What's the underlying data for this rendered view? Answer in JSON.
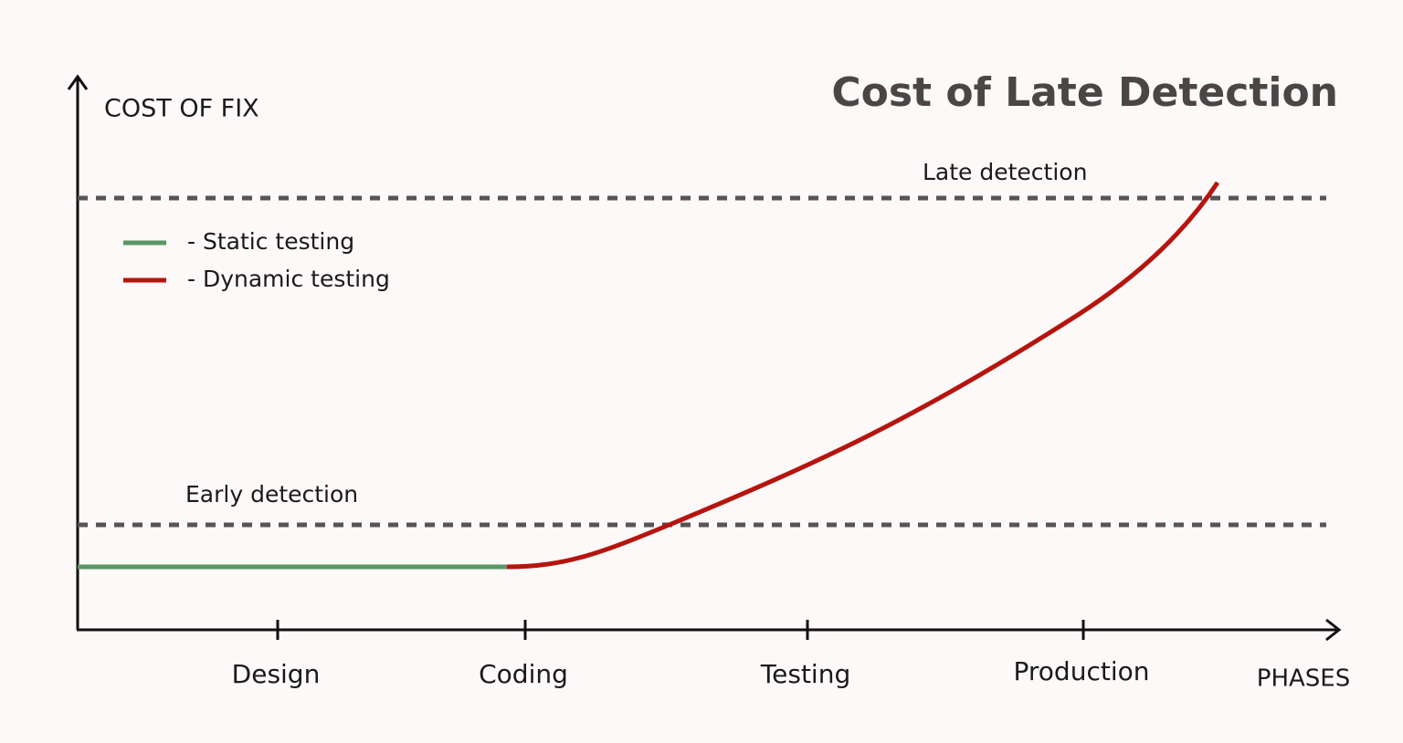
{
  "title": "Cost of Late Detection",
  "y_axis_label": "COST OF FIX",
  "x_axis_label": "PHASES",
  "phases": [
    "Design",
    "Coding",
    "Testing",
    "Production"
  ],
  "legend": [
    {
      "label": "- Static testing"
    },
    {
      "label": "- Dynamic testing"
    }
  ],
  "reference_lines": [
    {
      "label": "Late detection"
    },
    {
      "label": "Early detection"
    }
  ]
}
